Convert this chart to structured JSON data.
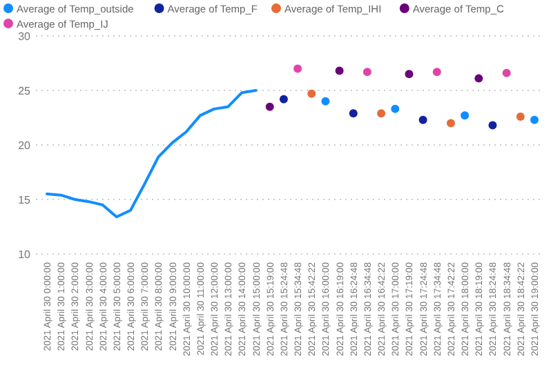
{
  "chart_data": {
    "type": "line",
    "categories": [
      "2021 April 30 0:00:00",
      "2021 April 30 1:00:00",
      "2021 April 30 2:00:00",
      "2021 April 30 3:00:00",
      "2021 April 30 4:00:00",
      "2021 April 30 5:00:00",
      "2021 April 30 6:00:00",
      "2021 April 30 7:00:00",
      "2021 April 30 8:00:00",
      "2021 April 30 9:00:00",
      "2021 April 30 10:00:00",
      "2021 April 30 11:00:00",
      "2021 April 30 12:00:00",
      "2021 April 30 13:00:00",
      "2021 April 30 14:00:00",
      "2021 April 30 15:00:00",
      "2021 April 30 15:19:00",
      "2021 April 30 15:24:48",
      "2021 April 30 15:34:48",
      "2021 April 30 15:42:22",
      "2021 April 30 16:00:00",
      "2021 April 30 16:19:00",
      "2021 April 30 16:24:48",
      "2021 April 30 16:34:48",
      "2021 April 30 16:42:22",
      "2021 April 30 17:00:00",
      "2021 April 30 17:19:00",
      "2021 April 30 17:24:48",
      "2021 April 30 17:34:48",
      "2021 April 30 17:42:22",
      "2021 April 30 18:00:00",
      "2021 April 30 18:19:00",
      "2021 April 30 18:24:48",
      "2021 April 30 18:34:48",
      "2021 April 30 18:42:22",
      "2021 April 30 19:00:00"
    ],
    "series": [
      {
        "name": "Average of Temp_outside",
        "color": "#118dff",
        "values": [
          15.5,
          15.4,
          15.0,
          14.8,
          14.5,
          13.4,
          14.0,
          16.4,
          18.9,
          20.2,
          21.2,
          22.7,
          23.3,
          23.5,
          24.8,
          25.0,
          null,
          null,
          null,
          null,
          24.0,
          null,
          null,
          null,
          null,
          23.3,
          null,
          null,
          null,
          null,
          22.7,
          null,
          null,
          null,
          null,
          22.3
        ]
      },
      {
        "name": "Average of Temp_F",
        "type": "scatter",
        "marker": "circle",
        "color": "#12239e",
        "values": [
          null,
          null,
          null,
          null,
          null,
          null,
          null,
          null,
          null,
          null,
          null,
          null,
          null,
          null,
          null,
          null,
          null,
          24.2,
          null,
          null,
          null,
          null,
          22.9,
          null,
          null,
          null,
          null,
          22.3,
          null,
          null,
          null,
          null,
          21.8,
          null,
          null,
          null
        ]
      },
      {
        "name": "Average of Temp_IHI",
        "type": "scatter",
        "marker": "circle",
        "color": "#e66c37",
        "values": [
          null,
          null,
          null,
          null,
          null,
          null,
          null,
          null,
          null,
          null,
          null,
          null,
          null,
          null,
          null,
          null,
          null,
          null,
          null,
          24.7,
          null,
          null,
          null,
          null,
          22.9,
          null,
          null,
          null,
          null,
          22.0,
          null,
          null,
          null,
          null,
          22.6,
          null
        ]
      },
      {
        "name": "Average of Temp_C",
        "type": "scatter",
        "marker": "circle",
        "color": "#6b007b",
        "values": [
          null,
          null,
          null,
          null,
          null,
          null,
          null,
          null,
          null,
          null,
          null,
          null,
          null,
          null,
          null,
          null,
          23.5,
          null,
          null,
          null,
          null,
          26.8,
          null,
          null,
          null,
          null,
          26.5,
          null,
          null,
          null,
          null,
          26.1,
          null,
          null,
          null,
          null
        ]
      },
      {
        "name": "Average of Temp_IJ",
        "type": "scatter",
        "marker": "circle",
        "color": "#e044a7",
        "values": [
          null,
          null,
          null,
          null,
          null,
          null,
          null,
          null,
          null,
          null,
          null,
          null,
          null,
          null,
          null,
          null,
          null,
          null,
          27.0,
          null,
          null,
          null,
          null,
          26.7,
          null,
          null,
          null,
          null,
          26.7,
          null,
          null,
          null,
          null,
          26.6,
          null,
          null
        ]
      }
    ],
    "ylim": [
      10,
      30
    ],
    "yticks": [
      10,
      15,
      20,
      25,
      30
    ],
    "grid": "y",
    "legend": "top"
  }
}
